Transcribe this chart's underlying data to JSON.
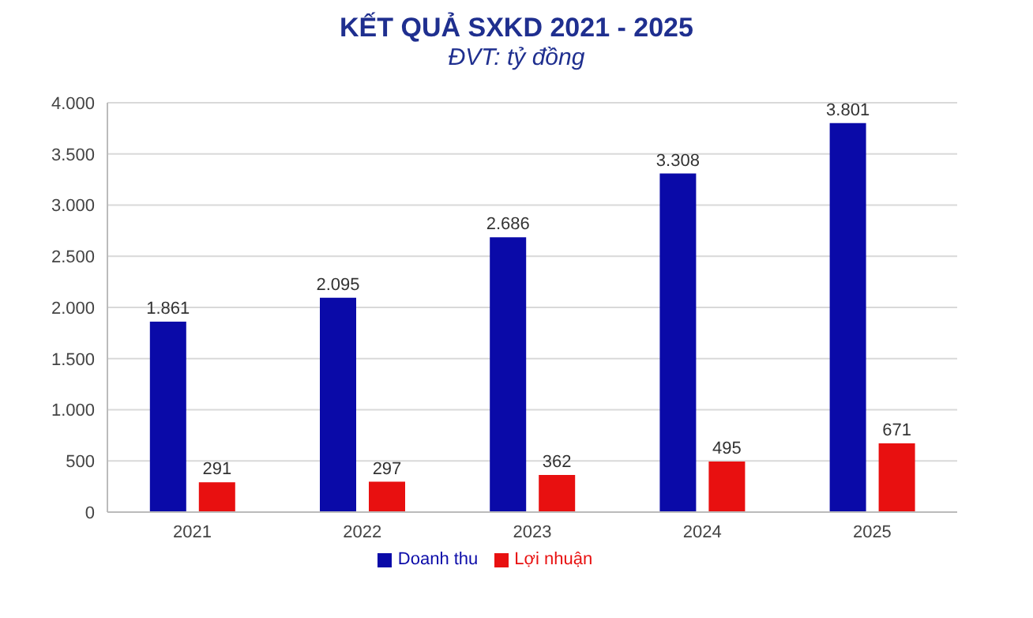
{
  "chart_data": {
    "type": "bar",
    "title": "KẾT QUẢ SXKD 2021 - 2025",
    "subtitle": "ĐVT: tỷ đồng",
    "categories": [
      "2021",
      "2022",
      "2023",
      "2024",
      "2025"
    ],
    "series": [
      {
        "name": "Doanh thu",
        "color": "#0a0aa8",
        "values": [
          1861,
          2095,
          2686,
          3308,
          3801
        ],
        "value_labels": [
          "1.861",
          "2.095",
          "2.686",
          "3.308",
          "3.801"
        ]
      },
      {
        "name": "Lợi nhuận",
        "color": "#e81010",
        "values": [
          291,
          297,
          362,
          495,
          671
        ],
        "value_labels": [
          "291",
          "297",
          "362",
          "495",
          "671"
        ]
      }
    ],
    "ylim": [
      0,
      4000
    ],
    "yticks": [
      {
        "value": 0,
        "label": "0"
      },
      {
        "value": 500,
        "label": "500"
      },
      {
        "value": 1000,
        "label": "1.000"
      },
      {
        "value": 1500,
        "label": "1.500"
      },
      {
        "value": 2000,
        "label": "2.000"
      },
      {
        "value": 2500,
        "label": "2.500"
      },
      {
        "value": 3000,
        "label": "3.000"
      },
      {
        "value": 3500,
        "label": "3.500"
      },
      {
        "value": 4000,
        "label": "4.000"
      }
    ],
    "grid": "y",
    "legend": "bottom"
  }
}
